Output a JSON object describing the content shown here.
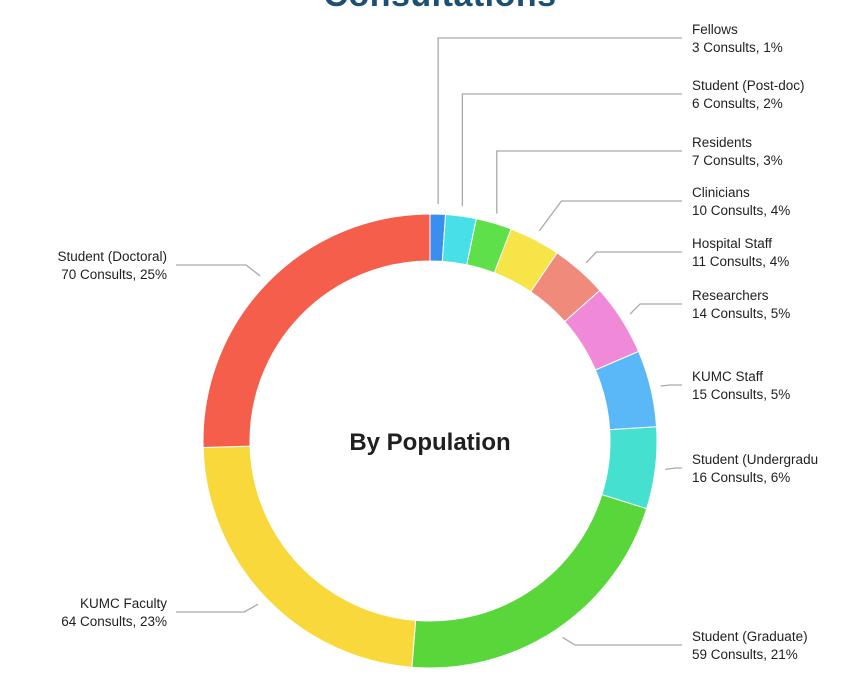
{
  "page_heading": "Consultations",
  "chart_data": {
    "type": "pie",
    "center_label": "By Population",
    "slices": [
      {
        "name": "Fellows",
        "value_text": "3 Consults, 1%",
        "consults": 3,
        "percent": 1,
        "color": "#3a8ef0"
      },
      {
        "name": "Student (Post-doc)",
        "value_text": "6 Consults, 2%",
        "consults": 6,
        "percent": 2,
        "color": "#48e0e8"
      },
      {
        "name": "Residents",
        "value_text": "7 Consults, 3%",
        "consults": 7,
        "percent": 3,
        "color": "#5de04a"
      },
      {
        "name": "Clinicians",
        "value_text": "10 Consults, 4%",
        "consults": 10,
        "percent": 4,
        "color": "#f6e448"
      },
      {
        "name": "Hospital Staff",
        "value_text": "11 Consults, 4%",
        "consults": 11,
        "percent": 4,
        "color": "#f08a7a"
      },
      {
        "name": "Researchers",
        "value_text": "14 Consults, 5%",
        "consults": 14,
        "percent": 5,
        "color": "#f08ad8"
      },
      {
        "name": "KUMC Staff",
        "value_text": "15 Consults, 5%",
        "consults": 15,
        "percent": 5,
        "color": "#5bb8f8"
      },
      {
        "name": "Student (Undergradu",
        "value_text": "16 Consults, 6%",
        "consults": 16,
        "percent": 6,
        "color": "#45e0d0"
      },
      {
        "name": "Student (Graduate)",
        "value_text": "59 Consults, 21%",
        "consults": 59,
        "percent": 21,
        "color": "#58d63a"
      },
      {
        "name": "KUMC Faculty",
        "value_text": "64 Consults, 23%",
        "consults": 64,
        "percent": 23,
        "color": "#f8d83a"
      },
      {
        "name": "Student (Doctoral)",
        "value_text": "70 Consults, 25%",
        "consults": 70,
        "percent": 25,
        "color": "#f45e4a"
      }
    ],
    "leader_line_color": "#a9a9a9"
  }
}
